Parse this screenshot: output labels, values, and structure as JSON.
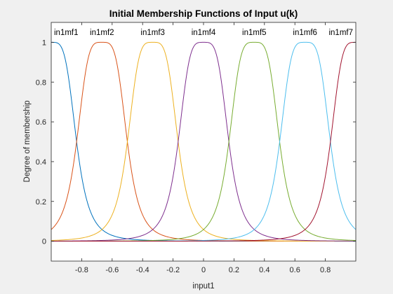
{
  "chart_data": {
    "type": "line",
    "title": "Initial Membership Functions of Input u(k)",
    "xlabel": "input1",
    "ylabel": "Degree of membership",
    "xlim": [
      -1,
      1
    ],
    "ylim": [
      -0.1,
      1.1
    ],
    "xticks": [
      -0.8,
      -0.6,
      -0.4,
      -0.2,
      0,
      0.2,
      0.4,
      0.6,
      0.8
    ],
    "xtick_labels": [
      "-0.8",
      "-0.6",
      "-0.4",
      "-0.2",
      "0",
      "0.2",
      "0.4",
      "0.6",
      "0.8"
    ],
    "yticks": [
      0,
      0.2,
      0.4,
      0.6,
      0.8,
      1
    ],
    "ytick_labels": [
      "0",
      "0.2",
      "0.4",
      "0.6",
      "0.8",
      "1"
    ],
    "grid": false,
    "series": [
      {
        "name": "in1mf1",
        "center": -1.0,
        "color": "#0072BD"
      },
      {
        "name": "in1mf2",
        "center": -0.6667,
        "color": "#D95319"
      },
      {
        "name": "in1mf3",
        "center": -0.3333,
        "color": "#EDB120"
      },
      {
        "name": "in1mf4",
        "center": 0.0,
        "color": "#7E2F8E"
      },
      {
        "name": "in1mf5",
        "center": 0.3333,
        "color": "#77AC30"
      },
      {
        "name": "in1mf6",
        "center": 0.6667,
        "color": "#4DBEEE"
      },
      {
        "name": "in1mf7",
        "center": 1.0,
        "color": "#A2142F"
      }
    ],
    "mf_shape": "generalized bell",
    "mf_halfwidth": 0.1667,
    "mf_slope": 2
  }
}
